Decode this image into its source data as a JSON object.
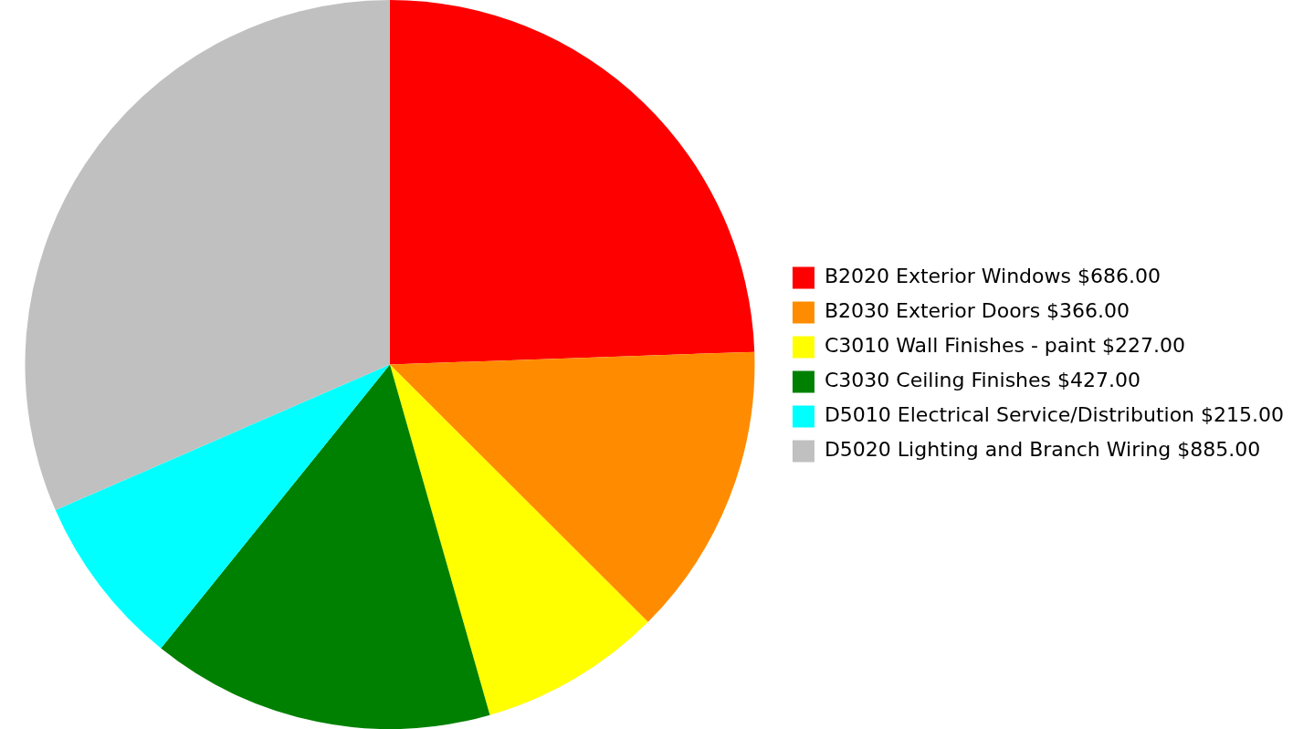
{
  "chart_data": {
    "type": "pie",
    "categories": [
      "B2020 Exterior Windows",
      "B2030 Exterior Doors",
      "C3010 Wall Finishes - paint",
      "C3030 Ceiling Finishes",
      "D5010 Electrical Service/Distribution",
      "D5020 Lighting and Branch Wiring"
    ],
    "values": [
      686,
      366,
      227,
      427,
      215,
      885
    ],
    "value_labels": [
      "$686.00",
      "$366.00",
      "$227.00",
      "$427.00",
      "$215.00",
      "$885.00"
    ],
    "colors": [
      "#ff0000",
      "#ff8c00",
      "#ffff00",
      "#008000",
      "#00ffff",
      "#c0c0c0"
    ],
    "legend": "right"
  }
}
